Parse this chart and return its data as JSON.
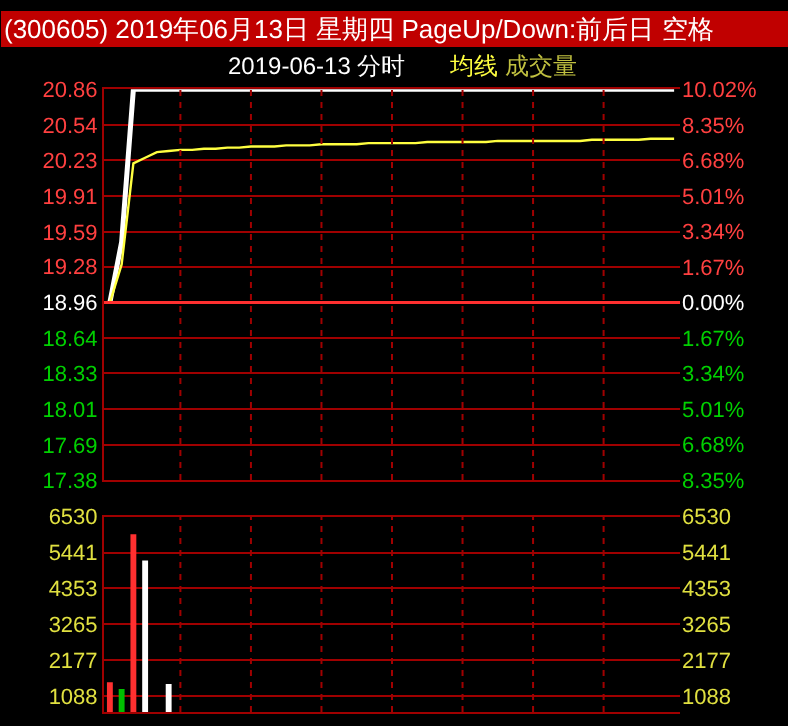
{
  "chart_data": [
    {
      "type": "line",
      "title": "(300605) 2019年06月13日 星期四 PageUp/Down:前后日 空格",
      "subtitle": "2019-06-13 分时",
      "categories": [
        null,
        null,
        null,
        null,
        null,
        null,
        null,
        null,
        null,
        null,
        null,
        null,
        null,
        null,
        null,
        null,
        null,
        null,
        null,
        null,
        null,
        null,
        null,
        null,
        null,
        null,
        null,
        null,
        null,
        null,
        null,
        null,
        null,
        null,
        null,
        null,
        null,
        null,
        null,
        null,
        null,
        null,
        null,
        null,
        null,
        null,
        null,
        null,
        null
      ],
      "series": [
        {
          "color": "#ffffff",
          "values": [
            18.96,
            19.5,
            20.86,
            20.86,
            20.86,
            20.86,
            20.86,
            20.86,
            20.86,
            20.86,
            20.86,
            20.86,
            20.86,
            20.86,
            20.86,
            20.86,
            20.86,
            20.86,
            20.86,
            20.86,
            20.86,
            20.86,
            20.86,
            20.86,
            20.86,
            20.86,
            20.86,
            20.86,
            20.86,
            20.86,
            20.86,
            20.86,
            20.86,
            20.86,
            20.86,
            20.86,
            20.86,
            20.86,
            20.86,
            20.86,
            20.86,
            20.86,
            20.86,
            20.86,
            20.86,
            20.86,
            20.86,
            20.86,
            20.86
          ]
        },
        {
          "name": "均线",
          "color": "#ffff40",
          "values": [
            18.96,
            19.3,
            20.2,
            20.25,
            20.3,
            20.31,
            20.32,
            20.32,
            20.33,
            20.33,
            20.34,
            20.34,
            20.35,
            20.35,
            20.35,
            20.36,
            20.36,
            20.36,
            20.37,
            20.37,
            20.37,
            20.37,
            20.38,
            20.38,
            20.38,
            20.38,
            20.38,
            20.39,
            20.39,
            20.39,
            20.39,
            20.39,
            20.39,
            20.4,
            20.4,
            20.4,
            20.4,
            20.4,
            20.4,
            20.4,
            20.4,
            20.41,
            20.41,
            20.41,
            20.41,
            20.41,
            20.42,
            20.42,
            20.42
          ]
        }
      ],
      "ylim": [
        17.38,
        20.86
      ],
      "yticks": [
        17.38,
        17.69,
        18.01,
        18.33,
        18.64,
        18.96,
        19.28,
        19.59,
        19.91,
        20.23,
        20.54,
        20.86
      ],
      "y2lim": [
        -8.35,
        10.02
      ],
      "y2ticks": [
        {
          "value": -8.35,
          "label": "8.35%"
        },
        {
          "value": -6.68,
          "label": "6.68%"
        },
        {
          "value": -5.01,
          "label": "5.01%"
        },
        {
          "value": -3.34,
          "label": "3.34%"
        },
        {
          "value": -1.67,
          "label": "1.67%"
        },
        {
          "value": 0,
          "label": "0.00%"
        },
        {
          "value": 1.67,
          "label": "1.67%"
        },
        {
          "value": 3.34,
          "label": "3.34%"
        },
        {
          "value": 5.01,
          "label": "5.01%"
        },
        {
          "value": 6.68,
          "label": "6.68%"
        },
        {
          "value": 8.35,
          "label": "8.35%"
        },
        {
          "value": 10.02,
          "label": "10.02%"
        }
      ],
      "ref_lines": [
        {
          "axis": "y",
          "value": 18.96,
          "color": "#ff3030"
        }
      ],
      "grid": true,
      "marker": "none",
      "line_style": "solid"
    },
    {
      "type": "bar",
      "categories": [
        null,
        null,
        null,
        null,
        null,
        null,
        null,
        null,
        null,
        null,
        null,
        null,
        null,
        null,
        null,
        null,
        null,
        null,
        null,
        null,
        null,
        null,
        null,
        null,
        null,
        null,
        null,
        null,
        null,
        null,
        null,
        null,
        null,
        null,
        null,
        null,
        null,
        null,
        null,
        null,
        null,
        null,
        null,
        null,
        null,
        null,
        null,
        null,
        null
      ],
      "series": [
        {
          "name": "成交量",
          "color": "#c0c040",
          "colors": [
            "#ff3030",
            "#00c000",
            "#ff3030",
            "#ffffff",
            null,
            "#ffffff",
            null,
            null,
            null,
            null,
            null,
            null,
            null,
            null,
            null,
            null,
            null,
            null,
            null,
            null,
            null,
            null,
            null,
            null,
            null,
            null,
            null,
            null,
            null,
            null,
            null,
            null,
            null,
            null,
            null,
            null,
            null,
            null,
            null,
            null,
            null,
            null,
            null,
            null,
            null,
            null,
            null,
            null,
            null
          ],
          "values": [
            1500,
            1300,
            6000,
            5200,
            null,
            1450,
            null,
            null,
            null,
            null,
            null,
            null,
            null,
            null,
            null,
            null,
            null,
            null,
            null,
            null,
            null,
            null,
            null,
            null,
            null,
            null,
            null,
            null,
            null,
            null,
            null,
            null,
            null,
            null,
            null,
            null,
            null,
            null,
            null,
            null,
            null,
            null,
            null,
            null,
            null,
            null,
            null,
            null,
            null
          ]
        }
      ],
      "ylim": [
        600,
        6530
      ],
      "yticks": [
        1088,
        2177,
        3265,
        4353,
        5441,
        6530
      ],
      "y2lim": [
        600,
        6530
      ],
      "y2ticks": [
        1088,
        2177,
        3265,
        4353,
        5441,
        6530
      ],
      "grid": true
    }
  ]
}
